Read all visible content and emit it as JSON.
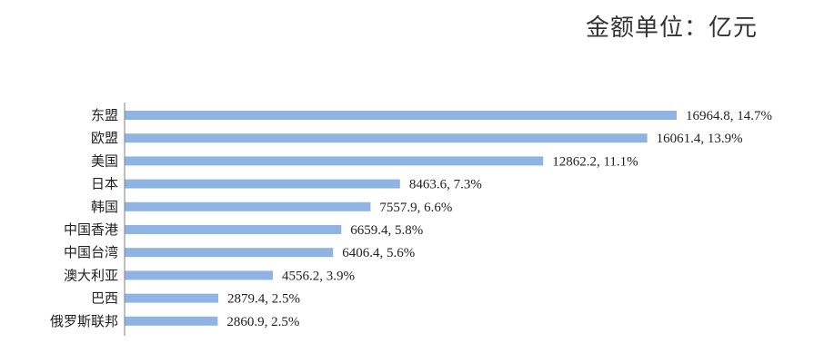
{
  "unit_label": "金额单位：亿元",
  "colors": {
    "bar": "#8fb4e3",
    "axis": "#7f7f7f",
    "text": "#222222"
  },
  "chart_data": {
    "type": "bar",
    "orientation": "horizontal",
    "title": "",
    "xlabel": "",
    "ylabel": "",
    "categories": [
      "东盟",
      "欧盟",
      "美国",
      "日本",
      "韩国",
      "中国香港",
      "中国台湾",
      "澳大利亚",
      "巴西",
      "俄罗斯联邦"
    ],
    "values": [
      16964.8,
      16061.4,
      12862.2,
      8463.6,
      7557.9,
      6659.4,
      6406.4,
      4556.2,
      2879.4,
      2860.9
    ],
    "shares": [
      "14.7%",
      "13.9%",
      "11.1%",
      "7.3%",
      "6.6%",
      "5.8%",
      "5.6%",
      "3.9%",
      "2.5%",
      "2.5%"
    ],
    "data_labels": [
      "16964.8, 14.7%",
      "16061.4, 13.9%",
      "12862.2, 11.1%",
      "8463.6, 7.3%",
      "7557.9, 6.6%",
      "6659.4, 5.8%",
      "6406.4, 5.6%",
      "4556.2, 3.9%",
      "2879.4, 2.5%",
      "2860.9, 2.5%"
    ],
    "xlim": [
      0,
      17000
    ],
    "grid": false,
    "legend": "none"
  }
}
